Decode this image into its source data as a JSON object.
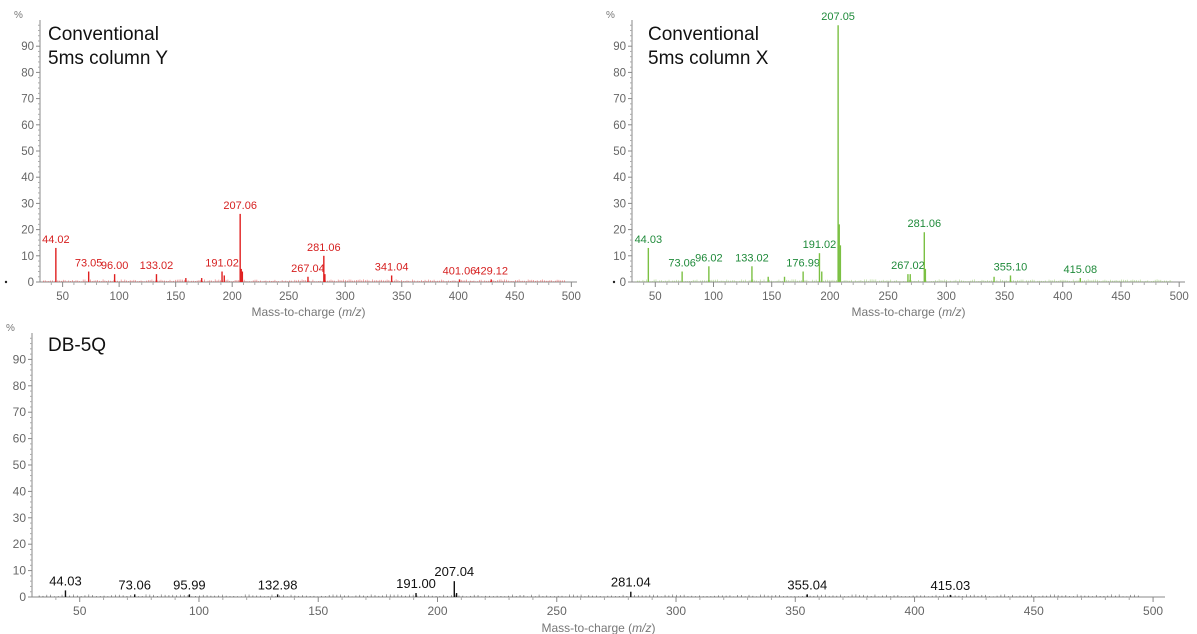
{
  "chart_data": [
    {
      "type": "bar",
      "title": "Conventional 5ms column Y",
      "title_lines": [
        "Conventional",
        "5ms column Y"
      ],
      "xlabel": "Mass-to-charge (m/z)",
      "xlabel_prefix": "Mass-to-charge (",
      "xlabel_italic": "m/z",
      "xlabel_suffix": ")",
      "ylabel": "%",
      "xlim": [
        30,
        505
      ],
      "ylim": [
        0,
        100
      ],
      "xticks": [
        50,
        100,
        150,
        200,
        250,
        300,
        350,
        400,
        450,
        500
      ],
      "yticks": [
        0,
        10,
        20,
        30,
        40,
        50,
        60,
        70,
        80,
        90
      ],
      "color": "#e02020",
      "label_color": "#d62020",
      "peaks": [
        {
          "x": 44.02,
          "y": 13,
          "label": "44.02"
        },
        {
          "x": 73.05,
          "y": 4,
          "label": "73.05"
        },
        {
          "x": 96.0,
          "y": 3,
          "label": "96.00"
        },
        {
          "x": 133.02,
          "y": 3,
          "label": "133.02"
        },
        {
          "x": 159.0,
          "y": 1.5,
          "label": ""
        },
        {
          "x": 173.0,
          "y": 1.5,
          "label": ""
        },
        {
          "x": 191.02,
          "y": 4,
          "label": "191.02"
        },
        {
          "x": 193.0,
          "y": 2.5,
          "label": ""
        },
        {
          "x": 207.06,
          "y": 26,
          "label": "207.06"
        },
        {
          "x": 208.0,
          "y": 5,
          "label": ""
        },
        {
          "x": 209.0,
          "y": 4,
          "label": ""
        },
        {
          "x": 267.04,
          "y": 2,
          "label": "267.04"
        },
        {
          "x": 281.06,
          "y": 10,
          "label": "281.06"
        },
        {
          "x": 282.0,
          "y": 3,
          "label": ""
        },
        {
          "x": 341.04,
          "y": 2.5,
          "label": "341.04"
        },
        {
          "x": 401.06,
          "y": 1,
          "label": "401.06"
        },
        {
          "x": 429.12,
          "y": 1,
          "label": "429.12"
        }
      ]
    },
    {
      "type": "bar",
      "title": "Conventional 5ms column X",
      "title_lines": [
        "Conventional",
        "5ms column X"
      ],
      "xlabel": "Mass-to-charge (m/z)",
      "xlabel_prefix": "Mass-to-charge (",
      "xlabel_italic": "m/z",
      "xlabel_suffix": ")",
      "ylabel": "%",
      "xlim": [
        30,
        505
      ],
      "ylim": [
        0,
        100
      ],
      "xticks": [
        50,
        100,
        150,
        200,
        250,
        300,
        350,
        400,
        450,
        500
      ],
      "yticks": [
        0,
        10,
        20,
        30,
        40,
        50,
        60,
        70,
        80,
        90
      ],
      "color": "#7bc043",
      "label_color": "#1f8a3a",
      "peaks": [
        {
          "x": 44.03,
          "y": 13,
          "label": "44.03"
        },
        {
          "x": 73.06,
          "y": 4,
          "label": "73.06"
        },
        {
          "x": 96.02,
          "y": 6,
          "label": "96.02"
        },
        {
          "x": 133.02,
          "y": 6,
          "label": "133.02"
        },
        {
          "x": 147.0,
          "y": 2,
          "label": ""
        },
        {
          "x": 161.0,
          "y": 2,
          "label": ""
        },
        {
          "x": 176.99,
          "y": 4,
          "label": "176.99"
        },
        {
          "x": 191.02,
          "y": 11,
          "label": "191.02"
        },
        {
          "x": 193.0,
          "y": 4,
          "label": ""
        },
        {
          "x": 207.05,
          "y": 98,
          "label": "207.05"
        },
        {
          "x": 208.0,
          "y": 22,
          "label": ""
        },
        {
          "x": 209.0,
          "y": 14,
          "label": ""
        },
        {
          "x": 267.02,
          "y": 3,
          "label": "267.02"
        },
        {
          "x": 269.0,
          "y": 3,
          "label": ""
        },
        {
          "x": 281.06,
          "y": 19,
          "label": "281.06"
        },
        {
          "x": 282.0,
          "y": 5,
          "label": ""
        },
        {
          "x": 341.0,
          "y": 2,
          "label": ""
        },
        {
          "x": 355.1,
          "y": 2.5,
          "label": "355.10"
        },
        {
          "x": 415.08,
          "y": 1.5,
          "label": "415.08"
        }
      ]
    },
    {
      "type": "bar",
      "title": "DB-5Q",
      "title_lines": [
        "DB-5Q"
      ],
      "xlabel": "Mass-to-charge (m/z)",
      "xlabel_prefix": "Mass-to-charge (",
      "xlabel_italic": "m/z",
      "xlabel_suffix": ")",
      "ylabel": "%",
      "xlim": [
        30,
        505
      ],
      "ylim": [
        0,
        100
      ],
      "xticks": [
        50,
        100,
        150,
        200,
        250,
        300,
        350,
        400,
        450,
        500
      ],
      "yticks": [
        0,
        10,
        20,
        30,
        40,
        50,
        60,
        70,
        80,
        90
      ],
      "color": "#111111",
      "label_color": "#111111",
      "peaks": [
        {
          "x": 44.03,
          "y": 2.5,
          "label": "44.03"
        },
        {
          "x": 73.06,
          "y": 1,
          "label": "73.06"
        },
        {
          "x": 95.99,
          "y": 1,
          "label": "95.99"
        },
        {
          "x": 132.98,
          "y": 1,
          "label": "132.98"
        },
        {
          "x": 191.0,
          "y": 1.5,
          "label": "191.00"
        },
        {
          "x": 207.04,
          "y": 6,
          "label": "207.04"
        },
        {
          "x": 208.0,
          "y": 1.5,
          "label": ""
        },
        {
          "x": 281.04,
          "y": 2,
          "label": "281.04"
        },
        {
          "x": 355.04,
          "y": 1,
          "label": "355.04"
        },
        {
          "x": 415.03,
          "y": 0.8,
          "label": "415.03"
        }
      ]
    }
  ]
}
